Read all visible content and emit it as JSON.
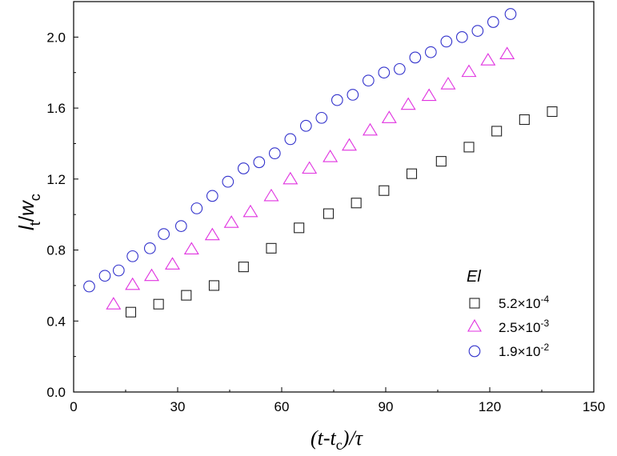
{
  "chart_data": {
    "type": "scatter",
    "title": "",
    "xlabel": {
      "main": "(t-t",
      "sub": "c",
      "tail": ")/τ"
    },
    "ylabel": {
      "l": "l",
      "l_sub": "t",
      "slash": "/",
      "w": "w",
      "w_sub": "c"
    },
    "xlim": [
      0,
      150
    ],
    "ylim": [
      0.0,
      2.2
    ],
    "x_ticks": [
      0,
      30,
      60,
      90,
      120,
      150
    ],
    "y_ticks": [
      0.0,
      0.4,
      0.8,
      1.2,
      1.6,
      2.0
    ],
    "x_tick_labels": [
      "0",
      "30",
      "60",
      "90",
      "120",
      "150"
    ],
    "y_tick_labels": [
      "0.0",
      "0.4",
      "0.8",
      "1.2",
      "1.6",
      "2.0"
    ],
    "grid": false,
    "legend": {
      "title": "El",
      "placement": "lower-right",
      "entries": [
        {
          "base": "5.2×10",
          "exp": "-4"
        },
        {
          "base": "2.5×10",
          "exp": "-3"
        },
        {
          "base": "1.9×10",
          "exp": "-2"
        }
      ]
    },
    "series": [
      {
        "name": "5.2×10^-4",
        "marker": "square",
        "color": "#222222",
        "x": [
          16.5,
          24.5,
          32.5,
          40.5,
          49,
          57,
          65,
          73.5,
          81.5,
          89.5,
          97.5,
          106,
          114,
          122,
          130,
          138
        ],
        "y": [
          0.45,
          0.495,
          0.545,
          0.6,
          0.705,
          0.81,
          0.925,
          1.005,
          1.065,
          1.135,
          1.23,
          1.3,
          1.38,
          1.47,
          1.535,
          1.58
        ]
      },
      {
        "name": "2.5×10^-3",
        "marker": "triangle",
        "color": "#e032e0",
        "x": [
          11.5,
          17,
          22.5,
          28.5,
          34,
          40,
          45.5,
          51,
          57,
          62.5,
          68,
          74,
          79.5,
          85.5,
          91,
          96.5,
          102.5,
          108,
          114,
          119.5,
          125
        ],
        "y": [
          0.495,
          0.605,
          0.655,
          0.72,
          0.805,
          0.885,
          0.955,
          1.015,
          1.105,
          1.2,
          1.26,
          1.325,
          1.39,
          1.475,
          1.545,
          1.62,
          1.67,
          1.735,
          1.805,
          1.87,
          1.905
        ]
      },
      {
        "name": "1.9×10^-2",
        "marker": "circle",
        "color": "#3333cc",
        "x": [
          4.5,
          9,
          13,
          17,
          22,
          26,
          31,
          35.5,
          40,
          44.5,
          49,
          53.5,
          58,
          62.5,
          67,
          71.5,
          76,
          80.5,
          85,
          89.5,
          94,
          98.5,
          103,
          107.5,
          112,
          116.5,
          121,
          126
        ],
        "y": [
          0.595,
          0.655,
          0.685,
          0.765,
          0.81,
          0.89,
          0.935,
          1.035,
          1.105,
          1.185,
          1.26,
          1.295,
          1.345,
          1.425,
          1.5,
          1.545,
          1.645,
          1.675,
          1.755,
          1.8,
          1.82,
          1.885,
          1.915,
          1.975,
          2.0,
          2.035,
          2.085,
          2.13
        ]
      }
    ]
  }
}
